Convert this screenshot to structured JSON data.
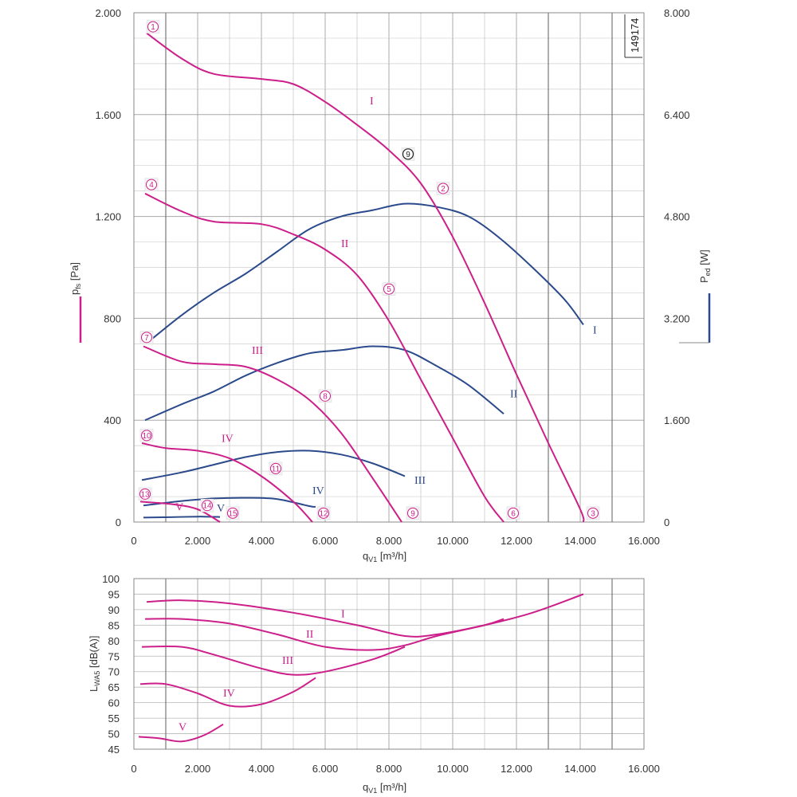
{
  "figure_id": "149174",
  "colors": {
    "pressure": "#cc1f8a",
    "power": "#2b4a8b",
    "grid": "#b0b0b0",
    "frame": "#888888"
  },
  "chart_data": [
    {
      "type": "line",
      "name": "fan-curves",
      "xlabel": "q",
      "xlabel_sub": "V1",
      "xlabel_unit": " [m³/h]",
      "ylabel": "p",
      "ylabel_sub": "fs",
      "ylabel_unit": " [Pa]",
      "y2label": "P",
      "y2label_sub": "ed",
      "y2label_unit": " [W]",
      "xlim": [
        0,
        16000
      ],
      "ylim": [
        0,
        2000
      ],
      "y2lim": [
        0,
        8000
      ],
      "x_ticks": [
        0,
        2000,
        4000,
        6000,
        8000,
        10000,
        12000,
        14000,
        16000
      ],
      "x_tick_labels": [
        "0",
        "2.000",
        "4.000",
        "6.000",
        "8.000",
        "10.000",
        "12.000",
        "14.000",
        "16.000"
      ],
      "y_ticks": [
        0,
        400,
        800,
        1200,
        1600,
        2000
      ],
      "y_tick_labels": [
        "0",
        "400",
        "800",
        "1.200",
        "1.600",
        "2.000"
      ],
      "y2_ticks": [
        0,
        1600,
        3200,
        4800,
        6400,
        8000
      ],
      "y2_tick_labels": [
        "0",
        "1.600",
        "3.200",
        "4.800",
        "6.400",
        "8.000"
      ],
      "grid": true,
      "pressure_series": [
        {
          "name": "I",
          "label": "I",
          "label_at": [
            7400,
            1640
          ],
          "points": [
            [
              400,
              1920
            ],
            [
              1500,
              1820
            ],
            [
              2500,
              1760
            ],
            [
              4000,
              1740
            ],
            [
              5000,
              1720
            ],
            [
              6000,
              1650
            ],
            [
              7000,
              1560
            ],
            [
              8000,
              1460
            ],
            [
              9000,
              1330
            ],
            [
              10000,
              1120
            ],
            [
              11000,
              860
            ],
            [
              12000,
              580
            ],
            [
              13000,
              310
            ],
            [
              14000,
              50
            ],
            [
              14100,
              0
            ]
          ]
        },
        {
          "name": "II",
          "label": "II",
          "label_at": [
            6500,
            1080
          ],
          "points": [
            [
              350,
              1290
            ],
            [
              1500,
              1220
            ],
            [
              2500,
              1180
            ],
            [
              4000,
              1170
            ],
            [
              5000,
              1130
            ],
            [
              6000,
              1070
            ],
            [
              7000,
              970
            ],
            [
              8000,
              790
            ],
            [
              9000,
              560
            ],
            [
              10000,
              330
            ],
            [
              11000,
              100
            ],
            [
              11600,
              0
            ]
          ]
        },
        {
          "name": "III",
          "label": "III",
          "label_at": [
            3700,
            660
          ],
          "points": [
            [
              300,
              690
            ],
            [
              1500,
              630
            ],
            [
              2500,
              620
            ],
            [
              3500,
              610
            ],
            [
              4500,
              560
            ],
            [
              5500,
              480
            ],
            [
              6500,
              350
            ],
            [
              7500,
              170
            ],
            [
              8400,
              0
            ]
          ]
        },
        {
          "name": "IV",
          "label": "IV",
          "label_at": [
            2750,
            315
          ],
          "points": [
            [
              250,
              310
            ],
            [
              1000,
              290
            ],
            [
              2000,
              280
            ],
            [
              3000,
              250
            ],
            [
              4000,
              180
            ],
            [
              5000,
              80
            ],
            [
              5600,
              0
            ]
          ]
        },
        {
          "name": "V",
          "label": "V",
          "label_at": [
            1300,
            45
          ],
          "points": [
            [
              200,
              80
            ],
            [
              1200,
              70
            ],
            [
              2000,
              50
            ],
            [
              2700,
              0
            ]
          ]
        }
      ],
      "power_series": [
        {
          "name": "I",
          "label": "I",
          "label_at": [
            14400,
            740
          ],
          "points": [
            [
              500,
              2850
            ],
            [
              1500,
              3250
            ],
            [
              2500,
              3600
            ],
            [
              3500,
              3900
            ],
            [
              4500,
              4250
            ],
            [
              5500,
              4600
            ],
            [
              6500,
              4800
            ],
            [
              7500,
              4900
            ],
            [
              8500,
              5000
            ],
            [
              9500,
              4950
            ],
            [
              10500,
              4800
            ],
            [
              11500,
              4450
            ],
            [
              12500,
              4000
            ],
            [
              13500,
              3500
            ],
            [
              14100,
              3100
            ]
          ]
        },
        {
          "name": "II",
          "label": "II",
          "label_at": [
            11800,
            490
          ],
          "points": [
            [
              350,
              1600
            ],
            [
              1500,
              1850
            ],
            [
              2500,
              2050
            ],
            [
              3500,
              2300
            ],
            [
              4500,
              2500
            ],
            [
              5500,
              2650
            ],
            [
              6500,
              2700
            ],
            [
              7500,
              2760
            ],
            [
              8500,
              2700
            ],
            [
              9500,
              2450
            ],
            [
              10500,
              2150
            ],
            [
              11600,
              1700
            ]
          ]
        },
        {
          "name": "III",
          "label": "III",
          "label_at": [
            8800,
            150
          ],
          "points": [
            [
              250,
              660
            ],
            [
              1500,
              780
            ],
            [
              2500,
              900
            ],
            [
              3500,
              1020
            ],
            [
              4500,
              1100
            ],
            [
              5500,
              1120
            ],
            [
              6500,
              1060
            ],
            [
              7500,
              920
            ],
            [
              8500,
              720
            ]
          ]
        },
        {
          "name": "IV",
          "label": "IV",
          "label_at": [
            5600,
            110
          ],
          "points": [
            [
              300,
              260
            ],
            [
              1500,
              330
            ],
            [
              2500,
              370
            ],
            [
              3500,
              380
            ],
            [
              4500,
              360
            ],
            [
              5500,
              250
            ],
            [
              5700,
              240
            ]
          ]
        },
        {
          "name": "V",
          "label": "V",
          "label_at": [
            2600,
            40
          ],
          "points": [
            [
              300,
              70
            ],
            [
              1000,
              75
            ],
            [
              2000,
              85
            ],
            [
              2700,
              80
            ]
          ]
        }
      ],
      "pressure_markers": [
        {
          "label": "1",
          "x": 600,
          "y": 1945
        },
        {
          "label": "2",
          "x": 9700,
          "y": 1310
        },
        {
          "label": "3",
          "x": 14400,
          "y": 35
        },
        {
          "label": "4",
          "x": 550,
          "y": 1325
        },
        {
          "label": "5",
          "x": 8000,
          "y": 915
        },
        {
          "label": "6",
          "x": 11900,
          "y": 35
        },
        {
          "label": "7",
          "x": 400,
          "y": 725
        },
        {
          "label": "8",
          "x": 6000,
          "y": 495
        },
        {
          "label": "9",
          "x": 8750,
          "y": 35
        },
        {
          "label": "10",
          "x": 400,
          "y": 340
        },
        {
          "label": "11",
          "x": 4450,
          "y": 210
        },
        {
          "label": "12",
          "x": 5950,
          "y": 35
        },
        {
          "label": "13",
          "x": 350,
          "y": 110
        },
        {
          "label": "14",
          "x": 2300,
          "y": 65
        },
        {
          "label": "15",
          "x": 3100,
          "y": 35
        }
      ],
      "black_marker": {
        "label": "9",
        "x": 8600,
        "y": 1445
      }
    },
    {
      "type": "line",
      "name": "sound-power",
      "xlabel": "q",
      "xlabel_sub": "V1",
      "xlabel_unit": " [m³/h]",
      "ylabel": "L",
      "ylabel_sub": "WA5",
      "ylabel_unit": " [dB(A)]",
      "xlim": [
        0,
        16000
      ],
      "ylim": [
        45,
        100
      ],
      "x_ticks": [
        0,
        2000,
        4000,
        6000,
        8000,
        10000,
        12000,
        14000,
        16000
      ],
      "x_tick_labels": [
        "0",
        "2.000",
        "4.000",
        "6.000",
        "8.000",
        "10.000",
        "12.000",
        "14.000",
        "16.000"
      ],
      "y_ticks": [
        45,
        50,
        55,
        60,
        65,
        70,
        75,
        80,
        85,
        90,
        95,
        100
      ],
      "y_tick_labels": [
        "45",
        "50",
        "55",
        "60",
        "65",
        "70",
        "75",
        "80",
        "85",
        "90",
        "95",
        "100"
      ],
      "grid": true,
      "series": [
        {
          "name": "I",
          "label": "I",
          "label_at": [
            6500,
            87.5
          ],
          "points": [
            [
              400,
              92.5
            ],
            [
              1500,
              93
            ],
            [
              3000,
              92
            ],
            [
              5000,
              89
            ],
            [
              7000,
              85
            ],
            [
              8500,
              81.5
            ],
            [
              9500,
              82
            ],
            [
              11000,
              85
            ],
            [
              12500,
              89
            ],
            [
              14100,
              95
            ]
          ]
        },
        {
          "name": "II",
          "label": "II",
          "label_at": [
            5400,
            81
          ],
          "points": [
            [
              350,
              87
            ],
            [
              1500,
              87
            ],
            [
              3000,
              85.5
            ],
            [
              4500,
              82
            ],
            [
              6000,
              78
            ],
            [
              7500,
              77
            ],
            [
              8500,
              78.5
            ],
            [
              9500,
              81.5
            ],
            [
              11000,
              85
            ],
            [
              11600,
              87
            ]
          ]
        },
        {
          "name": "III",
          "label": "III",
          "label_at": [
            4650,
            72.5
          ],
          "points": [
            [
              250,
              78
            ],
            [
              1500,
              78
            ],
            [
              2500,
              75.5
            ],
            [
              4000,
              71
            ],
            [
              5000,
              69
            ],
            [
              6000,
              70
            ],
            [
              7500,
              74
            ],
            [
              8500,
              78
            ]
          ]
        },
        {
          "name": "IV",
          "label": "IV",
          "label_at": [
            2800,
            62
          ],
          "points": [
            [
              200,
              66
            ],
            [
              1000,
              66
            ],
            [
              2000,
              63
            ],
            [
              3000,
              59
            ],
            [
              4000,
              59.5
            ],
            [
              5000,
              63.5
            ],
            [
              5700,
              68
            ]
          ]
        },
        {
          "name": "V",
          "label": "V",
          "label_at": [
            1400,
            51
          ],
          "points": [
            [
              150,
              49
            ],
            [
              800,
              48.5
            ],
            [
              1500,
              47.5
            ],
            [
              2200,
              49.5
            ],
            [
              2800,
              53
            ]
          ]
        }
      ]
    }
  ]
}
